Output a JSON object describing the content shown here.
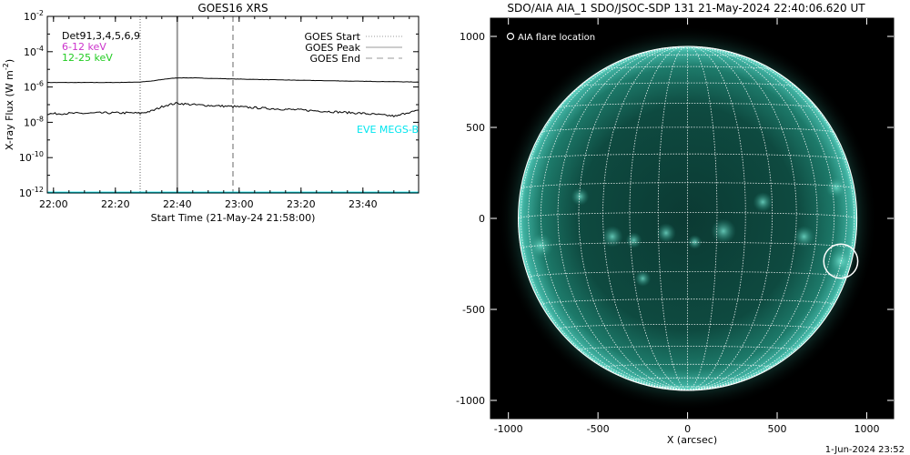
{
  "chart_data": [
    {
      "type": "line",
      "title": "GOES16 XRS",
      "xlabel": "Start Time (21-May-24 21:58:00)",
      "ylabel": "X-ray Flux (W m^-2)",
      "ylabel_main": "X-ray Flux (W m",
      "ylabel_exp": "-2",
      "ylabel_close": ")",
      "y_scale": "log",
      "xlim": [
        "21:58",
        "23:58"
      ],
      "ylim": [
        1e-12,
        0.01
      ],
      "x_ticks": [
        "22:00",
        "22:20",
        "22:40",
        "23:00",
        "23:20",
        "23:40"
      ],
      "y_ticks": [
        {
          "base": "10",
          "exp": "-2"
        },
        {
          "base": "10",
          "exp": "-4"
        },
        {
          "base": "10",
          "exp": "-6"
        },
        {
          "base": "10",
          "exp": "-8"
        },
        {
          "base": "10",
          "exp": "-10"
        },
        {
          "base": "10",
          "exp": "-12"
        }
      ],
      "markers": [
        {
          "name": "GOES Start",
          "time": "22:28",
          "style": "dotted",
          "color": "#999999"
        },
        {
          "name": "GOES Peak",
          "time": "22:40",
          "style": "solid",
          "color": "#999999"
        },
        {
          "name": "GOES End",
          "time": "22:58",
          "style": "dashed",
          "color": "#999999"
        }
      ],
      "legend_position": "top-right",
      "annotation_left": [
        {
          "text": "Det91,3,4,5,6,9",
          "color": "#000000"
        },
        {
          "text": "6-12 keV",
          "color": "#cc33cc"
        },
        {
          "text": "12-25 keV",
          "color": "#22cc22"
        }
      ],
      "side_label": {
        "text": "EVE MEGS-B",
        "color": "#00e5ee"
      },
      "series": [
        {
          "color": "#000000",
          "x": [
            "21:58",
            "22:10",
            "22:20",
            "22:28",
            "22:32",
            "22:36",
            "22:40",
            "22:45",
            "22:50",
            "23:00",
            "23:20",
            "23:40",
            "23:50",
            "23:58"
          ],
          "values": [
            1.8e-06,
            1.8e-06,
            1.8e-06,
            1.9e-06,
            2.2e-06,
            2.8e-06,
            3.3e-06,
            3.3e-06,
            3.1e-06,
            2.8e-06,
            2.4e-06,
            2.1e-06,
            2e-06,
            1.9e-06
          ]
        },
        {
          "color": "#000000",
          "x": [
            "21:58",
            "22:05",
            "22:10",
            "22:15",
            "22:20",
            "22:26",
            "22:28",
            "22:32",
            "22:36",
            "22:40",
            "22:45",
            "22:50",
            "23:00",
            "23:10",
            "23:20",
            "23:30",
            "23:40",
            "23:47",
            "23:51",
            "23:54",
            "23:58"
          ],
          "values": [
            3e-08,
            3.2e-08,
            3.2e-08,
            3.4e-08,
            3.4e-08,
            3.4e-08,
            3.2e-08,
            4.5e-08,
            9e-08,
            1.2e-07,
            1e-07,
            9e-08,
            7.5e-08,
            6e-08,
            5e-08,
            4e-08,
            3.2e-08,
            2.5e-08,
            2.2e-08,
            3.5e-08,
            4.5e-08
          ]
        },
        {
          "color": "#00e5ee",
          "x": [
            "21:58",
            "23:58"
          ],
          "values": [
            1.05e-12,
            1.05e-12
          ]
        }
      ]
    },
    {
      "type": "image",
      "title": "SDO/AIA AIA_1 SDO/JSOC-SDP 131 21-May-2024 22:40:06.620 UT",
      "xlabel": "X (arcsec)",
      "xlim": [
        -1100,
        1150
      ],
      "ylim": [
        -1100,
        1100
      ],
      "x_ticks": [
        -1000,
        -500,
        0,
        500,
        1000
      ],
      "y_ticks": [
        1000,
        500,
        0,
        -500,
        -1000
      ],
      "legend_text": "AIA flare location",
      "solar_radius": 945,
      "flare_location": {
        "x": 855,
        "y": -235,
        "radius": 95
      },
      "grid_spacing_deg": 10,
      "footer": "1-Jun-2024 23:52"
    }
  ]
}
